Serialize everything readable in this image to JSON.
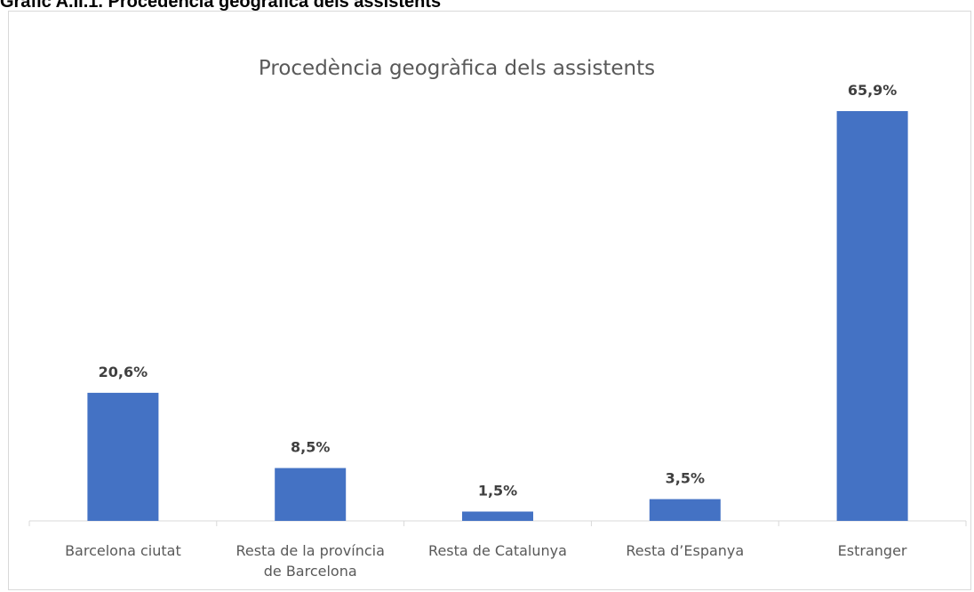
{
  "caption": "Gràfic A.II.1. Procedència geogràfica dels assistents",
  "chart_data": {
    "type": "bar",
    "title": "Procedència geogràfica dels assistents",
    "categories": [
      [
        "Barcelona ciutat"
      ],
      [
        "Resta de la província",
        "de Barcelona"
      ],
      [
        "Resta de Catalunya"
      ],
      [
        "Resta d’Espanya"
      ],
      [
        "Estranger"
      ]
    ],
    "values": [
      20.6,
      8.5,
      1.5,
      3.5,
      65.9
    ],
    "data_labels": [
      "20,6%",
      "8,5%",
      "1,5%",
      "3,5%",
      "65,9%"
    ],
    "bar_color": "#4472c4",
    "ylim": [
      0,
      65.9
    ],
    "grid": false,
    "legend": "none"
  }
}
